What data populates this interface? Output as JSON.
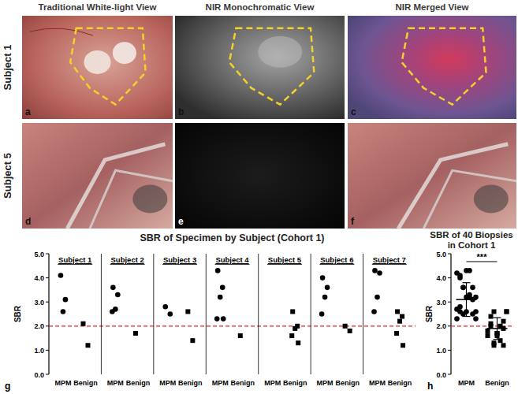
{
  "panels": {
    "column_titles": [
      "Traditional White-light View",
      "NIR Monochromatic View",
      "NIR Merged View"
    ],
    "rows": [
      {
        "label": "Subject 1",
        "panel_letters": [
          "a",
          "b",
          "c"
        ],
        "outlined": true
      },
      {
        "label": "Subject 5",
        "panel_letters": [
          "d",
          "e",
          "f"
        ],
        "outlined": false
      }
    ]
  },
  "chart_data": [
    {
      "type": "scatter",
      "title": "SBR of Specimen by Subject (Cohort 1)",
      "y_label": "SBR",
      "panel_label": "g",
      "ylim": [
        0,
        5
      ],
      "yticks": [
        {
          "value": 0,
          "label": "0.0"
        },
        {
          "value": 1,
          "label": "1.0"
        },
        {
          "value": 2,
          "label": "2.0"
        },
        {
          "value": 3,
          "label": "3.0"
        },
        {
          "value": 4,
          "label": "4.0"
        },
        {
          "value": 5,
          "label": "5.0"
        }
      ],
      "reference_line": {
        "value": 2,
        "color": "#e8262b",
        "line_style": "dashed"
      },
      "groups": [
        {
          "name": "Subject 1",
          "series": [
            {
              "name": "MPM",
              "marker": "circle",
              "color": "#000000",
              "values": [
                4.1,
                3.1,
                2.6
              ]
            },
            {
              "name": "Benign",
              "marker": "square",
              "color": "#000000",
              "values": [
                2.1,
                1.2
              ]
            }
          ]
        },
        {
          "name": "Subject 2",
          "series": [
            {
              "name": "MPM",
              "marker": "circle",
              "color": "#000000",
              "values": [
                3.6,
                3.3,
                2.7,
                2.6
              ]
            },
            {
              "name": "Benign",
              "marker": "square",
              "color": "#000000",
              "values": [
                1.7
              ]
            }
          ]
        },
        {
          "name": "Subject 3",
          "series": [
            {
              "name": "MPM",
              "marker": "circle",
              "color": "#000000",
              "values": [
                2.8,
                2.5
              ]
            },
            {
              "name": "Benign",
              "marker": "square",
              "color": "#000000",
              "values": [
                2.6,
                1.4
              ]
            }
          ]
        },
        {
          "name": "Subject 4",
          "series": [
            {
              "name": "MPM",
              "marker": "circle",
              "color": "#000000",
              "values": [
                4.3,
                3.6,
                3.2,
                2.3,
                2.3
              ]
            },
            {
              "name": "Benign",
              "marker": "square",
              "color": "#000000",
              "values": [
                1.6
              ]
            }
          ]
        },
        {
          "name": "Subject 5",
          "series": [
            {
              "name": "MPM",
              "marker": "circle",
              "color": "#000000",
              "values": []
            },
            {
              "name": "Benign",
              "marker": "square",
              "color": "#000000",
              "values": [
                2.6,
                2.0,
                1.9,
                1.6,
                1.3
              ]
            }
          ]
        },
        {
          "name": "Subject 6",
          "series": [
            {
              "name": "MPM",
              "marker": "circle",
              "color": "#000000",
              "values": [
                4.0,
                3.6,
                3.2,
                2.5
              ]
            },
            {
              "name": "Benign",
              "marker": "square",
              "color": "#000000",
              "values": [
                2.0,
                1.8
              ]
            }
          ]
        },
        {
          "name": "Subject 7",
          "series": [
            {
              "name": "MPM",
              "marker": "circle",
              "color": "#000000",
              "values": [
                4.3,
                4.2,
                3.2,
                2.6
              ]
            },
            {
              "name": "Benign",
              "marker": "square",
              "color": "#000000",
              "values": [
                2.6,
                2.4,
                2.2,
                1.7,
                1.2
              ]
            }
          ]
        }
      ]
    },
    {
      "type": "scatter",
      "title": "SBR of 40 Biopsies in Cohort 1",
      "y_label": "SBR",
      "panel_label": "h",
      "ylim": [
        0,
        5
      ],
      "yticks": [
        {
          "value": 0,
          "label": "0.0"
        },
        {
          "value": 1,
          "label": "1.0"
        },
        {
          "value": 2,
          "label": "2.0"
        },
        {
          "value": 3,
          "label": "3.0"
        },
        {
          "value": 4,
          "label": "4.0"
        },
        {
          "value": 5,
          "label": "5.0"
        }
      ],
      "reference_line": {
        "value": 2,
        "color": "#e8262b",
        "line_style": "dashed"
      },
      "annotation": "***",
      "series": [
        {
          "name": "MPM",
          "marker": "circle",
          "color": "#000000",
          "values": [
            4.1,
            3.1,
            2.6,
            3.6,
            3.3,
            2.7,
            2.6,
            2.8,
            2.5,
            4.3,
            3.6,
            3.2,
            2.3,
            2.3,
            4.0,
            3.6,
            3.2,
            2.5,
            4.3,
            4.2,
            3.2,
            2.6
          ],
          "mean": 3.1,
          "sd": 0.7
        },
        {
          "name": "Benign",
          "marker": "square",
          "color": "#000000",
          "values": [
            2.1,
            1.2,
            1.7,
            2.6,
            1.4,
            1.6,
            2.6,
            2.0,
            1.9,
            1.6,
            1.3,
            2.0,
            1.8,
            2.6,
            2.4,
            2.2,
            1.7,
            1.2
          ],
          "mean": 1.9,
          "sd": 0.45
        }
      ]
    }
  ]
}
